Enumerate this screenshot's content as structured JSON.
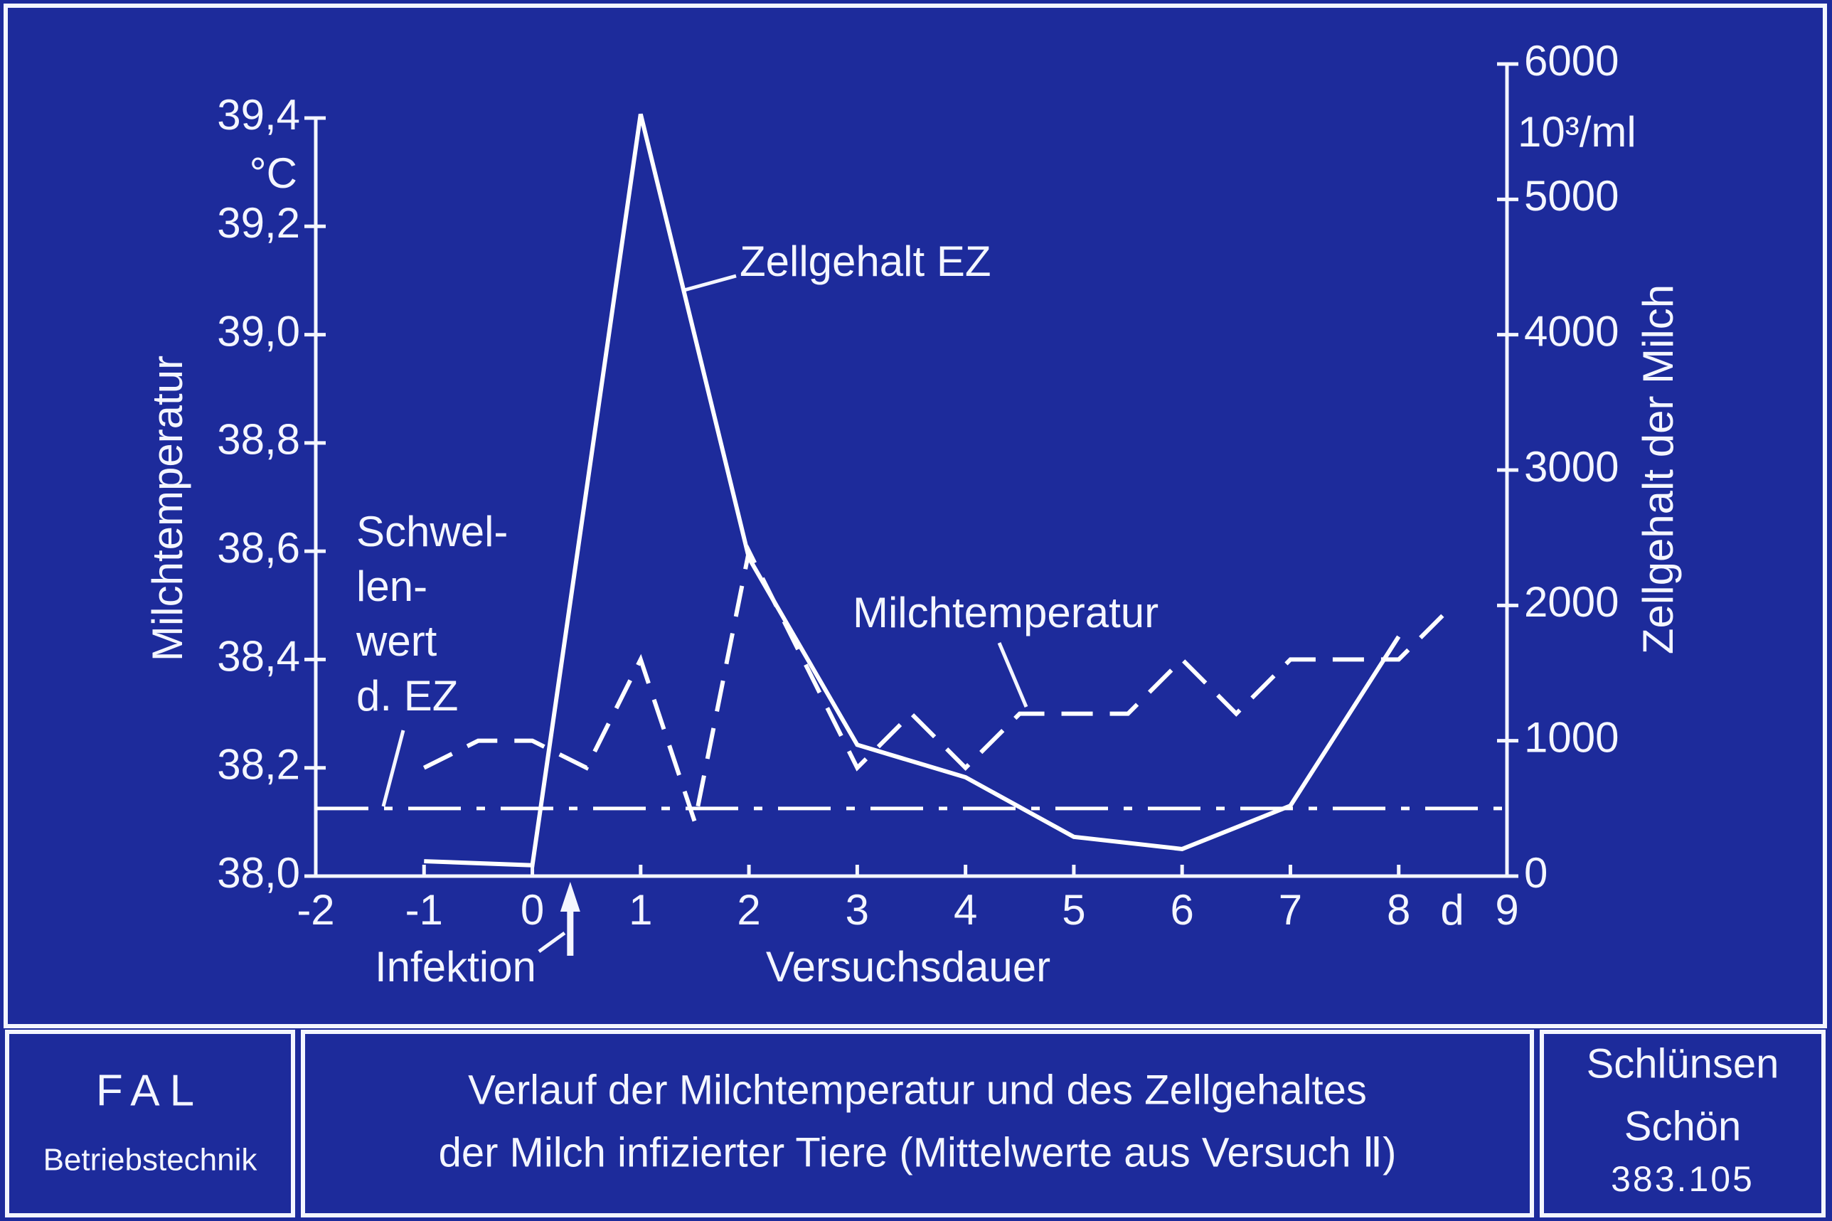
{
  "chart_data": {
    "type": "line",
    "footer": {
      "institute": "FAL",
      "department": "Betriebstechnik",
      "title_lines": [
        "Verlauf der Milchtemperatur und des Zellgehaltes",
        "der Milch infizierter Tiere (Mittelwerte aus Versuch Ⅱ)"
      ],
      "authors": [
        "Schlünsen",
        "Schön"
      ],
      "number": "383.105"
    },
    "xlabel": "Versuchsdauer",
    "xunit": "d",
    "ylabel": "Milchtemperatur",
    "yunit": "°C",
    "y2label": "Zellgehalt der Milch",
    "y2unit": "10³/ml",
    "xlim": [
      -2,
      9
    ],
    "xticks": [
      -2,
      -1,
      0,
      1,
      2,
      3,
      4,
      5,
      6,
      7,
      8,
      9
    ],
    "ylim": [
      38.0,
      39.4
    ],
    "yticks": [
      {
        "value": 38.0,
        "label": "38,0"
      },
      {
        "value": 38.2,
        "label": "38,2"
      },
      {
        "value": 38.4,
        "label": "38,4"
      },
      {
        "value": 38.6,
        "label": "38,6"
      },
      {
        "value": 38.8,
        "label": "38,8"
      },
      {
        "value": 39.0,
        "label": "39,0"
      },
      {
        "value": 39.2,
        "label": "39,2"
      },
      {
        "value": 39.4,
        "label": "39,4"
      }
    ],
    "y2lim": [
      0,
      6000
    ],
    "y2ticks": [
      0,
      1000,
      2000,
      3000,
      4000,
      5000,
      6000
    ],
    "series": [
      {
        "name": "Zellgehalt EZ",
        "color": "#ffffff",
        "style": "solid",
        "axis": "y2",
        "x": [
          -1,
          0,
          1,
          2,
          3,
          4,
          5,
          6,
          7,
          8
        ],
        "values": [
          110,
          80,
          5630,
          2350,
          970,
          730,
          290,
          200,
          520,
          1770
        ]
      },
      {
        "name": "Milchtemperatur",
        "color": "#ffffff",
        "style": "dashed",
        "axis": "y",
        "x": [
          -1,
          -0.5,
          0,
          0.5,
          1,
          1.5,
          2,
          3,
          3.5,
          4,
          4.5,
          5,
          5.5,
          6,
          6.5,
          7,
          7.5,
          8,
          8.5
        ],
        "values": [
          38.2,
          38.25,
          38.25,
          38.2,
          38.4,
          38.1,
          38.6,
          38.2,
          38.3,
          38.2,
          38.3,
          38.3,
          38.3,
          38.4,
          38.3,
          38.4,
          38.4,
          38.4,
          38.5
        ]
      }
    ],
    "threshold": {
      "value": 500,
      "axis": "y2",
      "style": "dashdot",
      "color": "#ffffff",
      "label_lines": [
        "Schwel-",
        "len-",
        "wert",
        "d. EZ"
      ]
    },
    "annotations": [
      {
        "text": "Infektion",
        "x": 0.35
      }
    ]
  }
}
